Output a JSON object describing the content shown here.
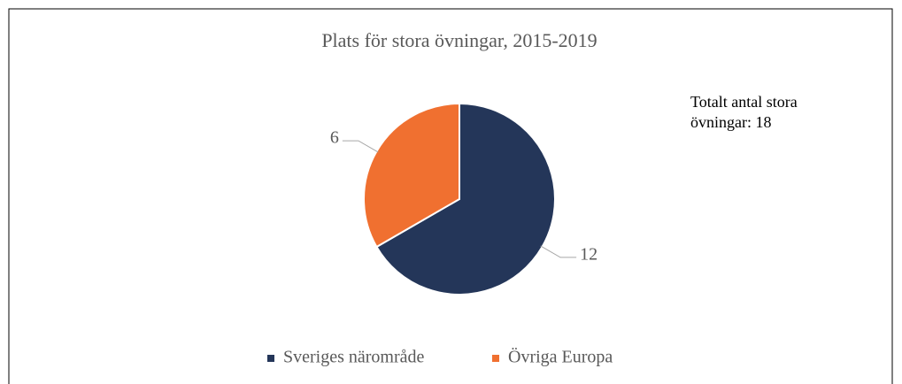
{
  "chart_data": {
    "type": "pie",
    "title": "Plats för stora övningar, 2015-2019",
    "categories": [
      "Sveriges närområde",
      "Övriga Europa"
    ],
    "values": [
      12,
      6
    ],
    "colors": [
      "#243659",
      "#f07030"
    ],
    "annotation": "Totalt antal stora övningar: 18",
    "legend": "bottom"
  }
}
